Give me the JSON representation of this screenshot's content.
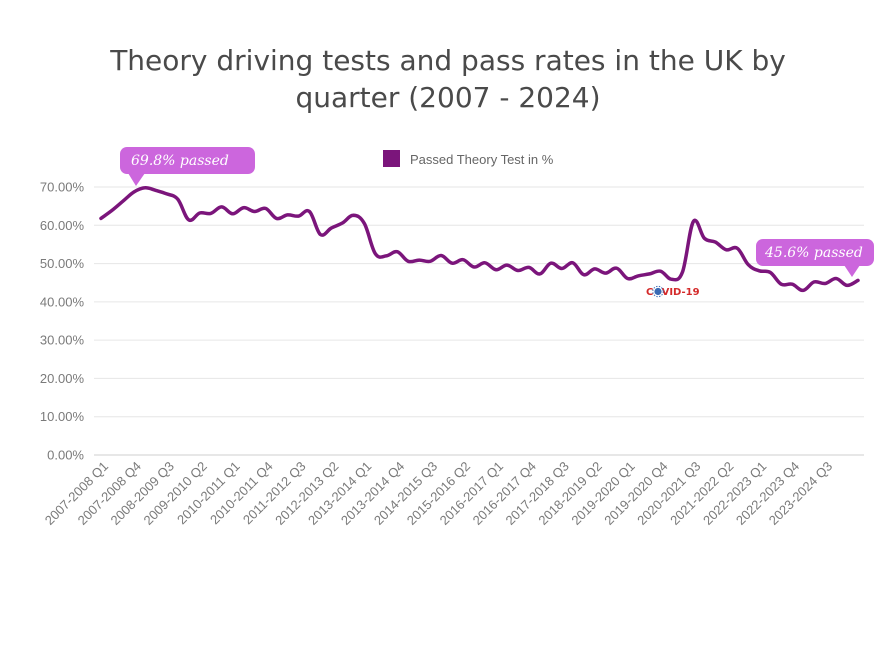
{
  "chart_data": {
    "type": "line",
    "title": "Theory driving tests and pass rates in the UK by quarter (2007 - 2024)",
    "ylim": [
      0,
      70
    ],
    "yticks": [
      "0.00%",
      "10.00%",
      "20.00%",
      "30.00%",
      "40.00%",
      "50.00%",
      "60.00%",
      "70.00%"
    ],
    "grid": true,
    "legend_position": "top-center",
    "x_tick_labels": [
      "2007-2008 Q1",
      "2007-2008 Q4",
      "2008-2009 Q3",
      "2009-2010 Q2",
      "2010-2011 Q1",
      "2010-2011 Q4",
      "2011-2012 Q3",
      "2012-2013 Q2",
      "2013-2014 Q1",
      "2013-2014 Q4",
      "2014-2015 Q3",
      "2015-2016 Q2",
      "2016-2017 Q1",
      "2016-2017 Q4",
      "2017-2018 Q3",
      "2018-2019 Q2",
      "2019-2020 Q1",
      "2019-2020 Q4",
      "2020-2021 Q3",
      "2021-2022 Q2",
      "2022-2023 Q1",
      "2022-2023 Q4",
      "2023-2024 Q3"
    ],
    "series": [
      {
        "name": "Passed Theory Test in %",
        "color": "#7b157b",
        "values": [
          61.8,
          63.9,
          66.3,
          68.7,
          69.8,
          69.1,
          68.2,
          66.8,
          61.4,
          63.2,
          63.1,
          64.8,
          63.0,
          64.6,
          63.6,
          64.4,
          61.8,
          62.7,
          62.4,
          63.6,
          57.6,
          59.3,
          60.6,
          62.6,
          60.5,
          52.6,
          52.0,
          53.1,
          50.6,
          50.9,
          50.6,
          52.1,
          50.1,
          51.0,
          49.1,
          50.2,
          48.4,
          49.6,
          48.2,
          49.0,
          47.3,
          50.1,
          48.7,
          50.2,
          47.1,
          48.6,
          47.5,
          48.8,
          46.1,
          46.8,
          47.3,
          48.0,
          45.9,
          47.8,
          61.0,
          56.6,
          55.6,
          53.6,
          54.0,
          49.7,
          48.1,
          47.7,
          44.6,
          44.6,
          43.0,
          45.2,
          44.8,
          46.1,
          44.3,
          45.6
        ]
      }
    ],
    "annotations": {
      "start_callout": "69.8% passed",
      "end_callout": "45.6% passed",
      "covid_label": "COVID-19"
    }
  },
  "colors": {
    "line": "#7b157b",
    "callout": "#cc66dd",
    "covid_red": "#d42a2a",
    "covid_blue": "#3a6bb5"
  }
}
